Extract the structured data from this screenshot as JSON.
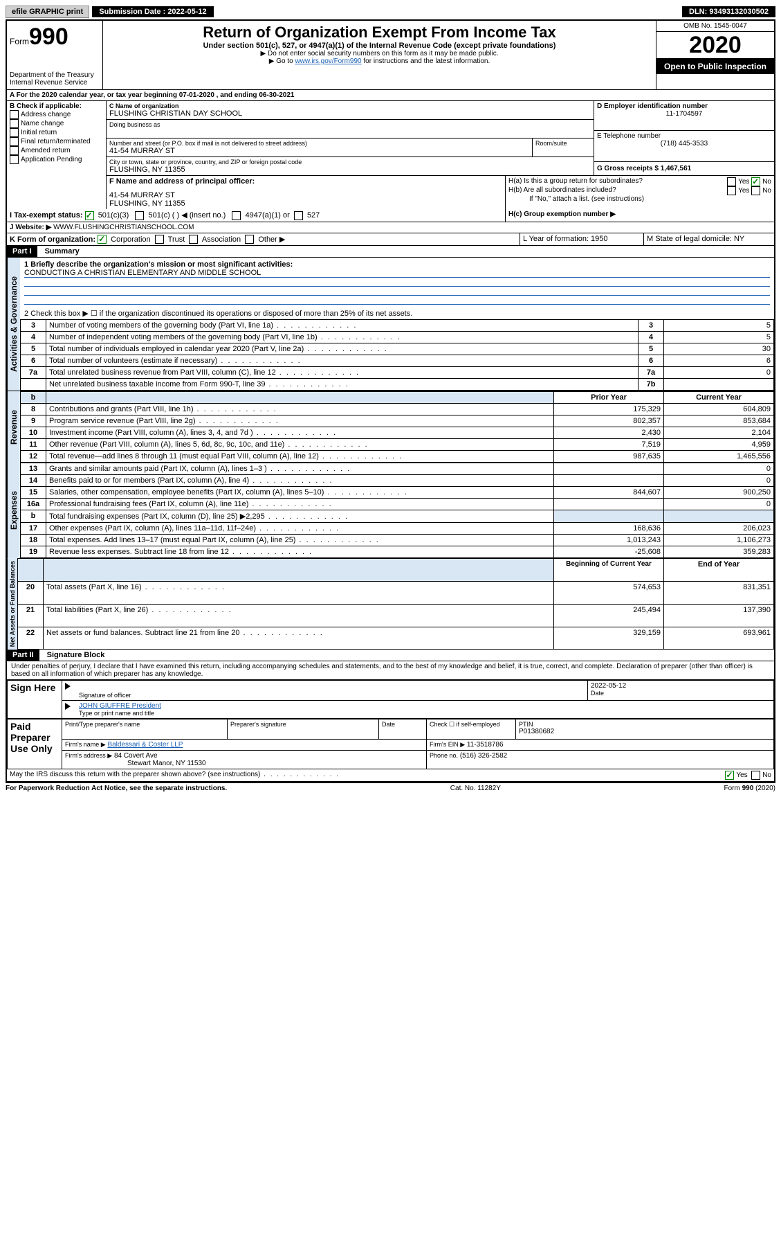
{
  "topbar": {
    "efile": "efile GRAPHIC print",
    "subdate_label": "Submission Date : 2022-05-12",
    "dln": "DLN: 93493132030502"
  },
  "header": {
    "form_word": "Form",
    "form_no": "990",
    "dept": "Department of the Treasury\nInternal Revenue Service",
    "title": "Return of Organization Exempt From Income Tax",
    "subtitle": "Under section 501(c), 527, or 4947(a)(1) of the Internal Revenue Code (except private foundations)",
    "note1": "▶ Do not enter social security numbers on this form as it may be made public.",
    "note2_pre": "▶ Go to ",
    "note2_link": "www.irs.gov/Form990",
    "note2_post": " for instructions and the latest information.",
    "omb": "OMB No. 1545-0047",
    "year": "2020",
    "open": "Open to Public Inspection"
  },
  "sectionA": {
    "line": "A For the 2020 calendar year, or tax year beginning 07-01-2020   , and ending 06-30-2021",
    "b_label": "B Check if applicable:",
    "b_opts": [
      "Address change",
      "Name change",
      "Initial return",
      "Final return/terminated",
      "Amended return",
      "Application Pending"
    ],
    "c_name_label": "C Name of organization",
    "c_name": "FLUSHING CHRISTIAN DAY SCHOOL",
    "dba_label": "Doing business as",
    "addr_label": "Number and street (or P.O. box if mail is not delivered to street address)",
    "room_label": "Room/suite",
    "addr": "41-54 MURRAY ST",
    "city_label": "City or town, state or province, country, and ZIP or foreign postal code",
    "city": "FLUSHING, NY  11355",
    "d_label": "D Employer identification number",
    "d_val": "11-1704597",
    "e_label": "E Telephone number",
    "e_val": "(718) 445-3533",
    "g_label": "G Gross receipts $ 1,467,561",
    "f_label": "F Name and address of principal officer:",
    "f_addr1": "41-54 MURRAY ST",
    "f_addr2": "FLUSHING, NY  11355",
    "ha_label": "H(a)  Is this a group return for subordinates?",
    "hb_label": "H(b)  Are all subordinates included?",
    "hb_note": "If \"No,\" attach a list. (see instructions)",
    "hc_label": "H(c)  Group exemption number ▶",
    "yes": "Yes",
    "no": "No",
    "i_label": "I  Tax-exempt status:",
    "i_501c3": "501(c)(3)",
    "i_501c": "501(c) (  ) ◀ (insert no.)",
    "i_4947": "4947(a)(1) or",
    "i_527": "527",
    "j_label": "J  Website: ▶",
    "j_val": "WWW.FLUSHINGCHRISTIANSCHOOL.COM",
    "k_label": "K Form of organization:",
    "k_corp": "Corporation",
    "k_trust": "Trust",
    "k_assoc": "Association",
    "k_other": "Other ▶",
    "l_label": "L Year of formation: 1950",
    "m_label": "M State of legal domicile: NY"
  },
  "part1": {
    "title": "Part I",
    "subtitle": "Summary",
    "l1_label": "1  Briefly describe the organization's mission or most significant activities:",
    "l1_val": "CONDUCTING A CHRISTIAN ELEMENTARY AND MIDDLE SCHOOL",
    "l2": "2   Check this box ▶ ☐  if the organization discontinued its operations or disposed of more than 25% of its net assets.",
    "rows_gov": [
      {
        "n": "3",
        "d": "Number of voting members of the governing body (Part VI, line 1a)",
        "r": "3",
        "v": "5"
      },
      {
        "n": "4",
        "d": "Number of independent voting members of the governing body (Part VI, line 1b)",
        "r": "4",
        "v": "5"
      },
      {
        "n": "5",
        "d": "Total number of individuals employed in calendar year 2020 (Part V, line 2a)",
        "r": "5",
        "v": "30"
      },
      {
        "n": "6",
        "d": "Total number of volunteers (estimate if necessary)",
        "r": "6",
        "v": "6"
      },
      {
        "n": "7a",
        "d": "Total unrelated business revenue from Part VIII, column (C), line 12",
        "r": "7a",
        "v": "0"
      },
      {
        "n": "",
        "d": "Net unrelated business taxable income from Form 990-T, line 39",
        "r": "7b",
        "v": ""
      }
    ],
    "col_prior": "Prior Year",
    "col_current": "Current Year",
    "rows_rev": [
      {
        "n": "8",
        "d": "Contributions and grants (Part VIII, line 1h)",
        "p": "175,329",
        "c": "604,809"
      },
      {
        "n": "9",
        "d": "Program service revenue (Part VIII, line 2g)",
        "p": "802,357",
        "c": "853,684"
      },
      {
        "n": "10",
        "d": "Investment income (Part VIII, column (A), lines 3, 4, and 7d )",
        "p": "2,430",
        "c": "2,104"
      },
      {
        "n": "11",
        "d": "Other revenue (Part VIII, column (A), lines 5, 6d, 8c, 9c, 10c, and 11e)",
        "p": "7,519",
        "c": "4,959"
      },
      {
        "n": "12",
        "d": "Total revenue—add lines 8 through 11 (must equal Part VIII, column (A), line 12)",
        "p": "987,635",
        "c": "1,465,556"
      }
    ],
    "rows_exp": [
      {
        "n": "13",
        "d": "Grants and similar amounts paid (Part IX, column (A), lines 1–3 )",
        "p": "",
        "c": "0"
      },
      {
        "n": "14",
        "d": "Benefits paid to or for members (Part IX, column (A), line 4)",
        "p": "",
        "c": "0"
      },
      {
        "n": "15",
        "d": "Salaries, other compensation, employee benefits (Part IX, column (A), lines 5–10)",
        "p": "844,607",
        "c": "900,250"
      },
      {
        "n": "16a",
        "d": "Professional fundraising fees (Part IX, column (A), line 11e)",
        "p": "",
        "c": "0"
      },
      {
        "n": "b",
        "d": "Total fundraising expenses (Part IX, column (D), line 25) ▶2,295",
        "p": "__shade__",
        "c": "__shade__"
      },
      {
        "n": "17",
        "d": "Other expenses (Part IX, column (A), lines 11a–11d, 11f–24e)",
        "p": "168,636",
        "c": "206,023"
      },
      {
        "n": "18",
        "d": "Total expenses. Add lines 13–17 (must equal Part IX, column (A), line 25)",
        "p": "1,013,243",
        "c": "1,106,273"
      },
      {
        "n": "19",
        "d": "Revenue less expenses. Subtract line 18 from line 12",
        "p": "-25,608",
        "c": "359,283"
      }
    ],
    "col_begin": "Beginning of Current Year",
    "col_end": "End of Year",
    "rows_net": [
      {
        "n": "20",
        "d": "Total assets (Part X, line 16)",
        "p": "574,653",
        "c": "831,351"
      },
      {
        "n": "21",
        "d": "Total liabilities (Part X, line 26)",
        "p": "245,494",
        "c": "137,390"
      },
      {
        "n": "22",
        "d": "Net assets or fund balances. Subtract line 21 from line 20",
        "p": "329,159",
        "c": "693,961"
      }
    ],
    "tab_gov": "Activities & Governance",
    "tab_rev": "Revenue",
    "tab_exp": "Expenses",
    "tab_net": "Net Assets or Fund Balances"
  },
  "part2": {
    "title": "Part II",
    "subtitle": "Signature Block",
    "declaration": "Under penalties of perjury, I declare that I have examined this return, including accompanying schedules and statements, and to the best of my knowledge and belief, it is true, correct, and complete. Declaration of preparer (other than officer) is based on all information of which preparer has any knowledge.",
    "sign_here": "Sign Here",
    "sig_officer": "Signature of officer",
    "date": "Date",
    "sig_date": "2022-05-12",
    "officer_name": "JOHN GIUFFRE President",
    "type_name": "Type or print name and title",
    "paid_prep": "Paid Preparer Use Only",
    "prep_name_label": "Print/Type preparer's name",
    "prep_sig_label": "Preparer's signature",
    "date_label": "Date",
    "check_self": "Check ☐ if self-employed",
    "ptin_label": "PTIN",
    "ptin": "P01380682",
    "firm_name_label": "Firm's name    ▶",
    "firm_name": "Baldessari & Coster LLP",
    "firm_ein_label": "Firm's EIN ▶",
    "firm_ein": "11-3518786",
    "firm_addr_label": "Firm's address ▶",
    "firm_addr1": "84 Covert Ave",
    "firm_addr2": "Stewart Manor, NY  11530",
    "phone_label": "Phone no.",
    "phone": "(516) 326-2582",
    "may_irs": "May the IRS discuss this return with the preparer shown above? (see instructions)"
  },
  "footer": {
    "pra": "For Paperwork Reduction Act Notice, see the separate instructions.",
    "cat": "Cat. No. 11282Y",
    "formrev": "Form 990 (2020)"
  }
}
